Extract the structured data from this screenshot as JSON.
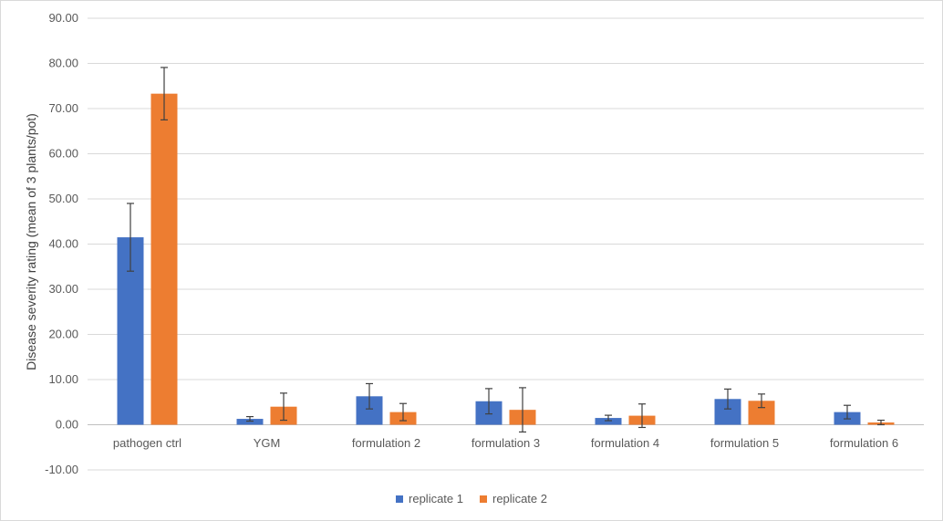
{
  "chart_data": {
    "type": "bar",
    "categories": [
      "pathogen ctrl",
      "YGM",
      "formulation 2",
      "formulation 3",
      "formulation 4",
      "formulation 5",
      "formulation 6"
    ],
    "series": [
      {
        "name": "replicate 1",
        "color": "#4472C4",
        "values": [
          41.5,
          1.3,
          6.3,
          5.2,
          1.5,
          5.7,
          2.8
        ],
        "error": [
          7.5,
          0.5,
          2.8,
          2.8,
          0.6,
          2.2,
          1.5
        ]
      },
      {
        "name": "replicate 2",
        "color": "#ED7D31",
        "values": [
          73.3,
          4.0,
          2.8,
          3.3,
          2.0,
          5.3,
          0.5
        ],
        "error": [
          5.8,
          3.0,
          1.9,
          4.9,
          2.6,
          1.5,
          0.5
        ]
      }
    ],
    "title": "",
    "xlabel": "",
    "ylabel": "Disease severity rating (mean of 3 plants/pot)",
    "ylim": [
      -10,
      90
    ],
    "ytick_step": 10,
    "yticks": [
      "-10.00",
      "0.00",
      "10.00",
      "20.00",
      "30.00",
      "40.00",
      "50.00",
      "60.00",
      "70.00",
      "80.00",
      "90.00"
    ],
    "grid": true,
    "legend_position": "bottom"
  }
}
